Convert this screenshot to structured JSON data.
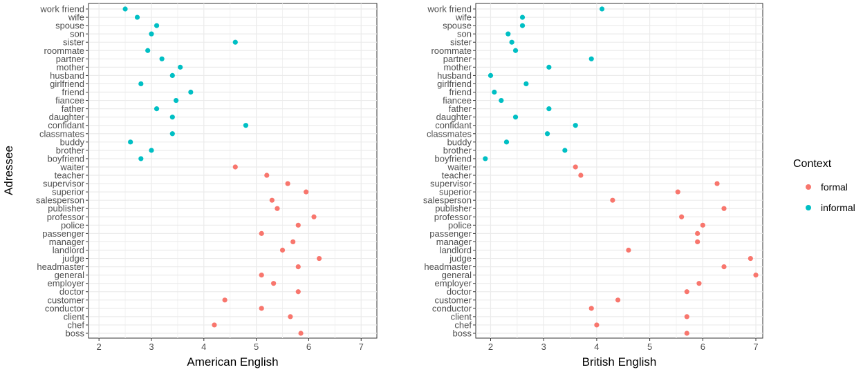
{
  "chart_data": [
    {
      "type": "scatter",
      "xlabel": "American English",
      "ylabel": "Adressee",
      "xlim": [
        1.8,
        7.3
      ],
      "xticks": [
        2,
        3,
        4,
        5,
        6,
        7
      ],
      "grid": true,
      "categories": [
        "boss",
        "chef",
        "client",
        "conductor",
        "customer",
        "doctor",
        "employer",
        "general",
        "headmaster",
        "judge",
        "landlord",
        "manager",
        "passenger",
        "police",
        "professor",
        "publisher",
        "salesperson",
        "superior",
        "supervisor",
        "teacher",
        "waiter",
        "boyfriend",
        "brother",
        "buddy",
        "classmates",
        "confidant",
        "daughter",
        "father",
        "fiancee",
        "friend",
        "girlfriend",
        "husband",
        "mother",
        "partner",
        "roommate",
        "sister",
        "son",
        "spouse",
        "wife",
        "work friend"
      ],
      "series": [
        {
          "name": "formal",
          "color": "#F8766D",
          "points": [
            {
              "label": "boss",
              "x": 5.85
            },
            {
              "label": "chef",
              "x": 4.2
            },
            {
              "label": "client",
              "x": 5.65
            },
            {
              "label": "conductor",
              "x": 5.1
            },
            {
              "label": "customer",
              "x": 4.4
            },
            {
              "label": "doctor",
              "x": 5.8
            },
            {
              "label": "employer",
              "x": 5.33
            },
            {
              "label": "general",
              "x": 5.1
            },
            {
              "label": "headmaster",
              "x": 5.8
            },
            {
              "label": "judge",
              "x": 6.2
            },
            {
              "label": "landlord",
              "x": 5.5
            },
            {
              "label": "manager",
              "x": 5.7
            },
            {
              "label": "passenger",
              "x": 5.1
            },
            {
              "label": "police",
              "x": 5.8
            },
            {
              "label": "professor",
              "x": 6.1
            },
            {
              "label": "publisher",
              "x": 5.4
            },
            {
              "label": "salesperson",
              "x": 5.3
            },
            {
              "label": "superior",
              "x": 5.95
            },
            {
              "label": "supervisor",
              "x": 5.6
            },
            {
              "label": "teacher",
              "x": 5.2
            },
            {
              "label": "waiter",
              "x": 4.6
            }
          ]
        },
        {
          "name": "informal",
          "color": "#00BFC4",
          "points": [
            {
              "label": "boyfriend",
              "x": 2.8
            },
            {
              "label": "brother",
              "x": 3.0
            },
            {
              "label": "buddy",
              "x": 2.6
            },
            {
              "label": "classmates",
              "x": 3.4
            },
            {
              "label": "confidant",
              "x": 4.8
            },
            {
              "label": "daughter",
              "x": 3.4
            },
            {
              "label": "father",
              "x": 3.1
            },
            {
              "label": "fiancee",
              "x": 3.47
            },
            {
              "label": "friend",
              "x": 3.75
            },
            {
              "label": "girlfriend",
              "x": 2.8
            },
            {
              "label": "husband",
              "x": 3.4
            },
            {
              "label": "mother",
              "x": 3.55
            },
            {
              "label": "partner",
              "x": 3.2
            },
            {
              "label": "roommate",
              "x": 2.93
            },
            {
              "label": "sister",
              "x": 4.6
            },
            {
              "label": "son",
              "x": 3.0
            },
            {
              "label": "spouse",
              "x": 3.1
            },
            {
              "label": "wife",
              "x": 2.73
            },
            {
              "label": "work friend",
              "x": 2.5
            }
          ]
        }
      ]
    },
    {
      "type": "scatter",
      "xlabel": "British English",
      "ylabel": "",
      "xlim": [
        1.72,
        7.13
      ],
      "xticks": [
        2,
        3,
        4,
        5,
        6,
        7
      ],
      "grid": true,
      "categories": [
        "boss",
        "chef",
        "client",
        "conductor",
        "customer",
        "doctor",
        "employer",
        "general",
        "headmaster",
        "judge",
        "landlord",
        "manager",
        "passenger",
        "police",
        "professor",
        "publisher",
        "salesperson",
        "superior",
        "supervisor",
        "teacher",
        "waiter",
        "boyfriend",
        "brother",
        "buddy",
        "classmates",
        "confidant",
        "daughter",
        "father",
        "fiancee",
        "friend",
        "girlfriend",
        "husband",
        "mother",
        "partner",
        "roommate",
        "sister",
        "son",
        "spouse",
        "wife",
        "work friend"
      ],
      "series": [
        {
          "name": "formal",
          "color": "#F8766D",
          "points": [
            {
              "label": "boss",
              "x": 5.7
            },
            {
              "label": "chef",
              "x": 4.0
            },
            {
              "label": "client",
              "x": 5.7
            },
            {
              "label": "conductor",
              "x": 3.9
            },
            {
              "label": "customer",
              "x": 4.4
            },
            {
              "label": "doctor",
              "x": 5.7
            },
            {
              "label": "employer",
              "x": 5.93
            },
            {
              "label": "general",
              "x": 7.0
            },
            {
              "label": "headmaster",
              "x": 6.4
            },
            {
              "label": "judge",
              "x": 6.9
            },
            {
              "label": "landlord",
              "x": 4.6
            },
            {
              "label": "manager",
              "x": 5.9
            },
            {
              "label": "passenger",
              "x": 5.9
            },
            {
              "label": "police",
              "x": 6.0
            },
            {
              "label": "professor",
              "x": 5.6
            },
            {
              "label": "publisher",
              "x": 6.4
            },
            {
              "label": "salesperson",
              "x": 4.3
            },
            {
              "label": "superior",
              "x": 5.53
            },
            {
              "label": "supervisor",
              "x": 6.27
            },
            {
              "label": "teacher",
              "x": 3.7
            },
            {
              "label": "waiter",
              "x": 3.6
            }
          ]
        },
        {
          "name": "informal",
          "color": "#00BFC4",
          "points": [
            {
              "label": "boyfriend",
              "x": 1.9
            },
            {
              "label": "brother",
              "x": 3.4
            },
            {
              "label": "buddy",
              "x": 2.3
            },
            {
              "label": "classmates",
              "x": 3.07
            },
            {
              "label": "confidant",
              "x": 3.6
            },
            {
              "label": "daughter",
              "x": 2.47
            },
            {
              "label": "father",
              "x": 3.1
            },
            {
              "label": "fiancee",
              "x": 2.2
            },
            {
              "label": "friend",
              "x": 2.07
            },
            {
              "label": "girlfriend",
              "x": 2.67
            },
            {
              "label": "husband",
              "x": 2.0
            },
            {
              "label": "mother",
              "x": 3.1
            },
            {
              "label": "partner",
              "x": 3.9
            },
            {
              "label": "roommate",
              "x": 2.47
            },
            {
              "label": "sister",
              "x": 2.4
            },
            {
              "label": "son",
              "x": 2.33
            },
            {
              "label": "spouse",
              "x": 2.6
            },
            {
              "label": "wife",
              "x": 2.6
            },
            {
              "label": "work friend",
              "x": 4.1
            }
          ]
        }
      ]
    }
  ],
  "legend": {
    "title": "Context",
    "items": [
      {
        "label": "formal",
        "color": "#F8766D"
      },
      {
        "label": "informal",
        "color": "#00BFC4"
      }
    ]
  }
}
